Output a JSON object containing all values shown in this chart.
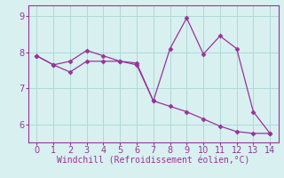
{
  "line1_x": [
    0,
    1,
    2,
    3,
    4,
    5,
    6,
    7,
    8,
    9,
    10,
    11,
    12,
    13,
    14
  ],
  "line1_y": [
    7.9,
    7.65,
    7.75,
    8.05,
    7.9,
    7.75,
    7.7,
    6.65,
    8.1,
    8.95,
    7.95,
    8.45,
    8.1,
    6.35,
    5.75
  ],
  "line2_x": [
    0,
    1,
    2,
    3,
    4,
    5,
    6,
    7,
    8,
    9,
    10,
    11,
    12,
    13,
    14
  ],
  "line2_y": [
    7.9,
    7.65,
    7.45,
    7.75,
    7.75,
    7.75,
    7.65,
    6.65,
    6.5,
    6.35,
    6.15,
    5.95,
    5.8,
    5.75,
    5.75
  ],
  "color": "#993399",
  "marker": "D",
  "markersize": 2.5,
  "linewidth": 0.9,
  "xlabel": "Windchill (Refroidissement éolien,°C)",
  "xlim": [
    -0.5,
    14.5
  ],
  "ylim": [
    5.5,
    9.3
  ],
  "yticks": [
    6,
    7,
    8,
    9
  ],
  "xticks": [
    0,
    1,
    2,
    3,
    4,
    5,
    6,
    7,
    8,
    9,
    10,
    11,
    12,
    13,
    14
  ],
  "bg_color": "#d8f0f0",
  "grid_color": "#b0d8d8",
  "tick_color": "#993399",
  "label_color": "#993399",
  "xlabel_fontsize": 7.0,
  "tick_fontsize": 7.0,
  "fig_width": 3.2,
  "fig_height": 2.0,
  "dpi": 100
}
